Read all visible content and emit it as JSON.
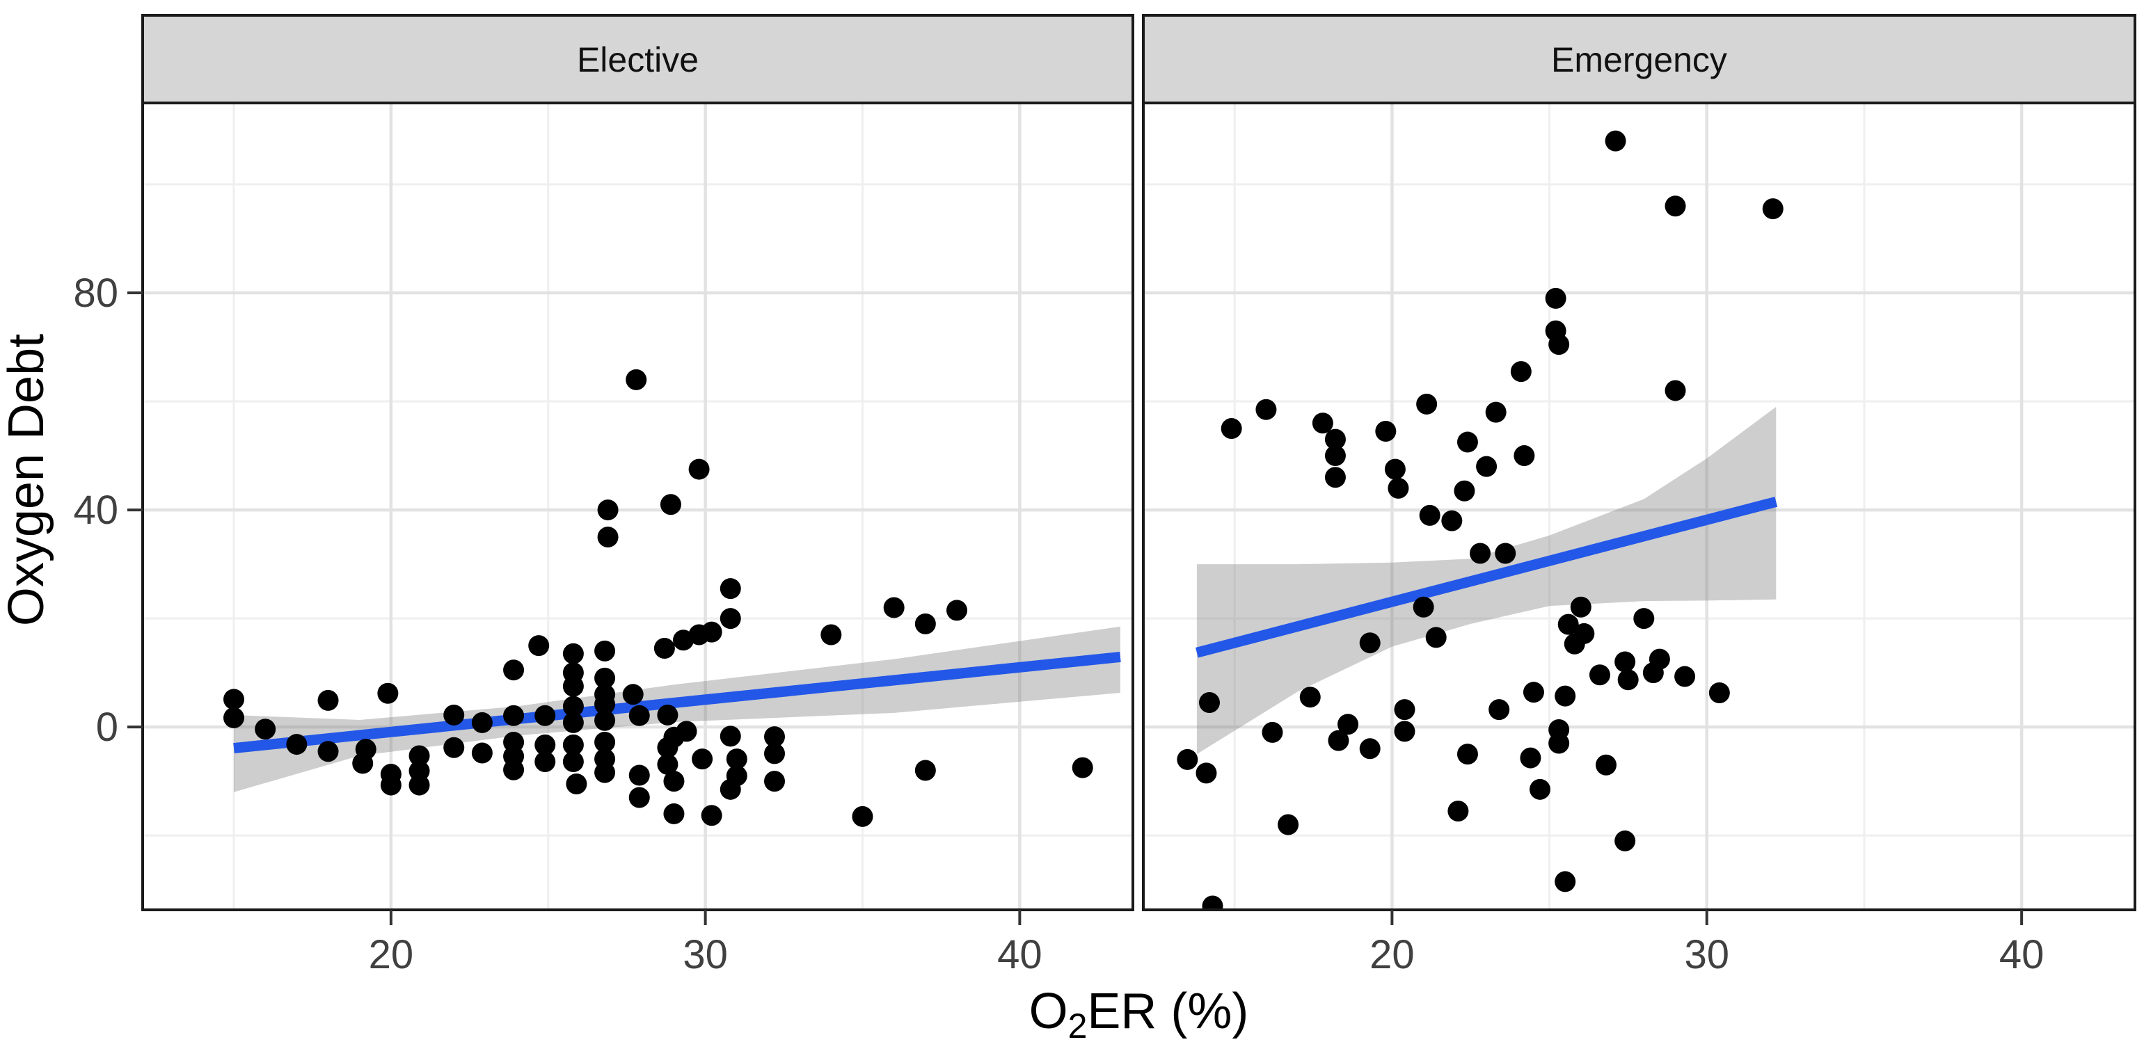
{
  "figure": {
    "background": "#FFFFFF"
  },
  "chart_data": {
    "type": "scatter",
    "title": "",
    "xlabel_text": "O2ER (%)",
    "xlabel_parts": {
      "pre": "O",
      "sub": "2",
      "post": "ER (%)"
    },
    "ylabel": "Oxygen Debt",
    "legend_position": "none",
    "grid": true,
    "xlim": [
      12.1,
      43.6
    ],
    "ylim": [
      -33.7,
      115.0
    ],
    "x_ticks": [
      20,
      30,
      40
    ],
    "x_minor_ticks": [
      15,
      25,
      35
    ],
    "y_ticks": [
      0,
      40,
      80
    ],
    "y_minor_ticks": [
      -20,
      20,
      60,
      100
    ],
    "facets": [
      {
        "label": "Elective",
        "points": [
          [
            27.8,
            64
          ],
          [
            29.8,
            47.5
          ],
          [
            28.9,
            41
          ],
          [
            26.9,
            40
          ],
          [
            26.9,
            35
          ],
          [
            30.8,
            25.5
          ],
          [
            30.8,
            20
          ],
          [
            36,
            22
          ],
          [
            37,
            19
          ],
          [
            38,
            21.5
          ],
          [
            34,
            17
          ],
          [
            28.7,
            14.5
          ],
          [
            29.3,
            16
          ],
          [
            29.8,
            17
          ],
          [
            30.2,
            17.5
          ],
          [
            24.7,
            15
          ],
          [
            25.8,
            13.5
          ],
          [
            26.8,
            14
          ],
          [
            23.9,
            10.5
          ],
          [
            25.8,
            10
          ],
          [
            26.8,
            9
          ],
          [
            25.8,
            7.5
          ],
          [
            26.8,
            6
          ],
          [
            27.7,
            6
          ],
          [
            15,
            5.1
          ],
          [
            18,
            4.9
          ],
          [
            19.9,
            6.2
          ],
          [
            22,
            2.2
          ],
          [
            22.9,
            0.8
          ],
          [
            23.9,
            2.1
          ],
          [
            24.9,
            2.1
          ],
          [
            25.8,
            3.8
          ],
          [
            25.8,
            0.8
          ],
          [
            26.8,
            4.2
          ],
          [
            26.8,
            1.2
          ],
          [
            27.9,
            2.1
          ],
          [
            28.8,
            2.2
          ],
          [
            29.4,
            -0.8
          ],
          [
            30.8,
            -1.7
          ],
          [
            32.2,
            -1.8
          ],
          [
            29,
            -1.9
          ],
          [
            15,
            1.7
          ],
          [
            16,
            -0.4
          ],
          [
            17,
            -3.2
          ],
          [
            18,
            -4.5
          ],
          [
            19.2,
            -4.1
          ],
          [
            19.1,
            -6.7
          ],
          [
            20,
            -8.7
          ],
          [
            20,
            -10.7
          ],
          [
            20.9,
            -5.3
          ],
          [
            20.9,
            -8.1
          ],
          [
            20.9,
            -10.7
          ],
          [
            22,
            -3.8
          ],
          [
            22.9,
            -4.8
          ],
          [
            23.9,
            -2.8
          ],
          [
            23.9,
            -5.4
          ],
          [
            23.9,
            -7.9
          ],
          [
            24.9,
            -3.3
          ],
          [
            24.9,
            -6.4
          ],
          [
            25.8,
            -3.3
          ],
          [
            25.8,
            -6.4
          ],
          [
            25.9,
            -10.5
          ],
          [
            26.8,
            -2.8
          ],
          [
            26.8,
            -5.9
          ],
          [
            26.8,
            -8.4
          ],
          [
            27.9,
            -8.9
          ],
          [
            27.9,
            -13
          ],
          [
            28.8,
            -3.8
          ],
          [
            28.8,
            -6.9
          ],
          [
            29,
            -10
          ],
          [
            29,
            -16
          ],
          [
            29.9,
            -5.9
          ],
          [
            30.2,
            -16.3
          ],
          [
            30.8,
            -11.5
          ],
          [
            31,
            -5.9
          ],
          [
            31,
            -9
          ],
          [
            32.2,
            -4.9
          ],
          [
            32.2,
            -10
          ],
          [
            35,
            -16.5
          ],
          [
            37,
            -8
          ],
          [
            42,
            -7.5
          ]
        ],
        "trend_line": [
          [
            15,
            -3.9
          ],
          [
            43.2,
            12.9
          ]
        ],
        "ci_band": {
          "x": [
            15,
            19,
            24,
            29,
            36,
            43.2
          ],
          "upper": [
            2.2,
            1.3,
            3.8,
            7.8,
            12.5,
            18.5
          ],
          "lower": [
            -12,
            -5.3,
            -1.6,
            0.9,
            2.6,
            6.3
          ]
        }
      },
      {
        "label": "Emergency",
        "points": [
          [
            27.1,
            108
          ],
          [
            29,
            96
          ],
          [
            32.1,
            95.5
          ],
          [
            25.2,
            79
          ],
          [
            25.2,
            73
          ],
          [
            25.3,
            70.5
          ],
          [
            24.1,
            65.5
          ],
          [
            29,
            62
          ],
          [
            21.1,
            59.5
          ],
          [
            23.3,
            58
          ],
          [
            16,
            58.5
          ],
          [
            14.9,
            55
          ],
          [
            17.8,
            56
          ],
          [
            18.2,
            53
          ],
          [
            18.2,
            50
          ],
          [
            18.2,
            46
          ],
          [
            19.8,
            54.5
          ],
          [
            20.1,
            47.5
          ],
          [
            22.4,
            52.5
          ],
          [
            23,
            48
          ],
          [
            24.2,
            50
          ],
          [
            20.2,
            44
          ],
          [
            22.3,
            43.5
          ],
          [
            21.2,
            39
          ],
          [
            21.9,
            38
          ],
          [
            22.8,
            32
          ],
          [
            23.6,
            32
          ],
          [
            21,
            22.1
          ],
          [
            26,
            22.1
          ],
          [
            25.6,
            18.9
          ],
          [
            26.1,
            17.2
          ],
          [
            25.8,
            15.3
          ],
          [
            28,
            20
          ],
          [
            19.3,
            15.5
          ],
          [
            21.4,
            16.5
          ],
          [
            27.4,
            12
          ],
          [
            28.5,
            12.5
          ],
          [
            27.5,
            8.7
          ],
          [
            28.3,
            10
          ],
          [
            29.3,
            9.3
          ],
          [
            30.4,
            6.3
          ],
          [
            26.6,
            9.6
          ],
          [
            14.2,
            4.5
          ],
          [
            17.4,
            5.5
          ],
          [
            24.5,
            6.4
          ],
          [
            25.5,
            5.7
          ],
          [
            23.4,
            3.2
          ],
          [
            20.4,
            3.2
          ],
          [
            18.6,
            0.5
          ],
          [
            16.2,
            -1
          ],
          [
            20.4,
            -0.8
          ],
          [
            18.3,
            -2.5
          ],
          [
            19.3,
            -4
          ],
          [
            25.3,
            -0.5
          ],
          [
            25.3,
            -3
          ],
          [
            13.5,
            -6
          ],
          [
            14.1,
            -8.5
          ],
          [
            22.4,
            -5
          ],
          [
            24.4,
            -5.7
          ],
          [
            26.8,
            -7
          ],
          [
            24.7,
            -11.5
          ],
          [
            22.1,
            -15.5
          ],
          [
            16.7,
            -18
          ],
          [
            27.4,
            -21
          ],
          [
            25.5,
            -28.5
          ],
          [
            14.3,
            -33
          ]
        ],
        "trend_line": [
          [
            13.8,
            13.7
          ],
          [
            32.2,
            41.5
          ]
        ],
        "ci_band": {
          "x": [
            13.8,
            17,
            20,
            22.5,
            25,
            28,
            30,
            32.2
          ],
          "upper": [
            30,
            30,
            30.3,
            31,
            35.3,
            42,
            49.5,
            59
          ],
          "lower": [
            -5,
            6.5,
            14.8,
            19,
            22.3,
            23.2,
            23.3,
            23.5
          ]
        }
      }
    ]
  },
  "style": {
    "strip_fill": "#D6D6D6",
    "strip_border": "#1A1A1A",
    "strip_text_color": "#111111",
    "panel_border": "#1A1A1A",
    "panel_fill": "#FFFFFF",
    "grid_major": "#E2E2E2",
    "grid_minor": "#EFEFEF",
    "point_color": "#000000",
    "trend_color": "#2357E8",
    "band_color": "rgba(127,127,127,0.38)",
    "tick_color": "#333333",
    "tick_label_color": "#404040",
    "axis_title_color": "#000000"
  }
}
